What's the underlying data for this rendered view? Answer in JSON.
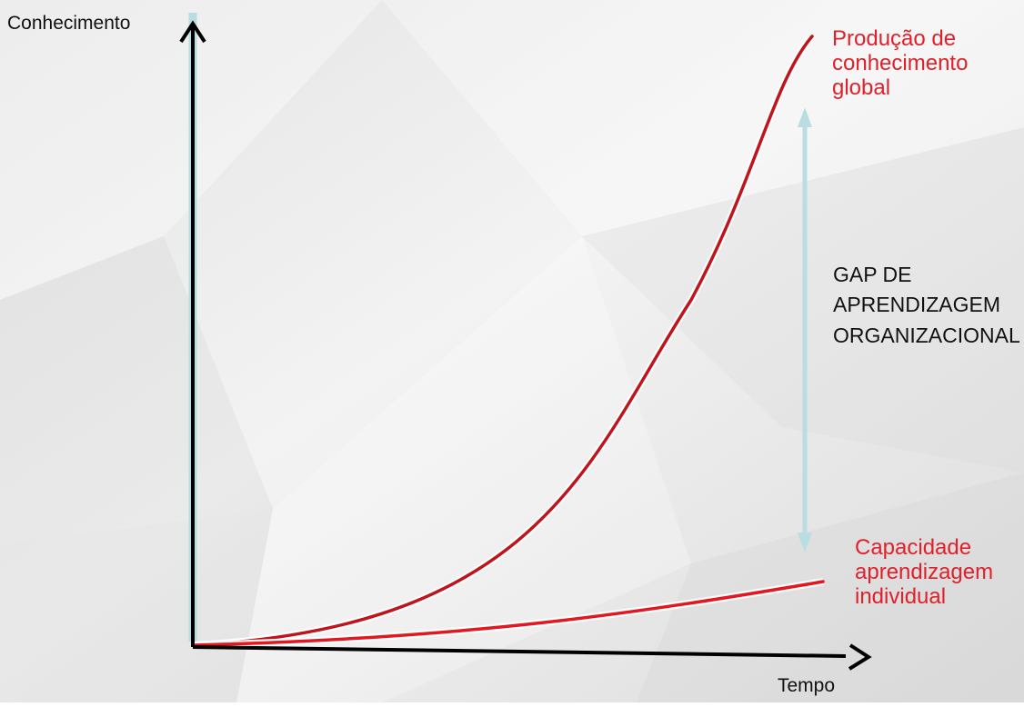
{
  "diagram": {
    "y_axis_label": "Conhecimento",
    "x_axis_label": "Tempo",
    "global_curve_label": [
      "Produção de",
      "conhecimento",
      "global"
    ],
    "individual_curve_label": [
      "Capacidade",
      "aprendizagem",
      "individual"
    ],
    "gap_label": [
      "GAP DE",
      "APRENDIZAGEM",
      "ORGANIZACIONAL"
    ]
  },
  "colors": {
    "global_curve": "#c0141c",
    "individual_curve": "#e3171f",
    "gap_arrow": "#b9dde2",
    "axis": "#000000",
    "curve_label": "#e0202a"
  }
}
